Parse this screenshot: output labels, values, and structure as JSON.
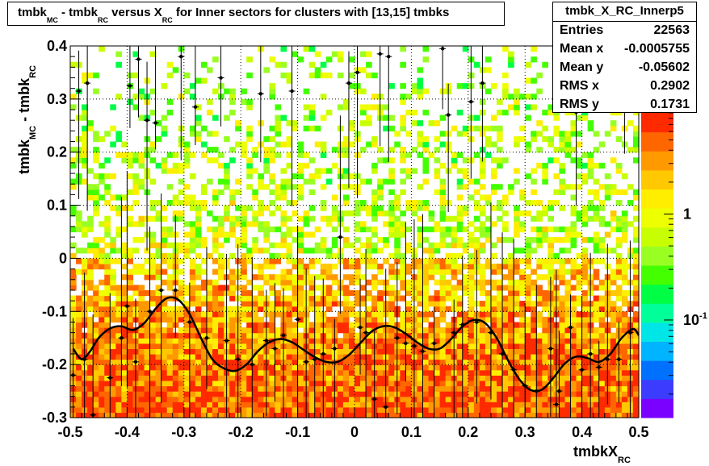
{
  "chart_data": {
    "type": "heatmap",
    "title": {
      "p1": "tmbk",
      "s1": "MC",
      "p2": " - tmbk",
      "s2": "RC",
      "p3": " versus X",
      "s3": "RC",
      "p4": " for Inner sectors for clusters with [13,15] tmbks"
    },
    "xlabel": {
      "main": "tmbkX",
      "sub": "RC"
    },
    "ylabel": {
      "main1": "tmbk",
      "sub1": "MC",
      "main2": " - tmbk",
      "sub2": "RC"
    },
    "xlim": [
      -0.5,
      0.5
    ],
    "ylim": [
      -0.3,
      0.4
    ],
    "x_ticks": [
      -0.5,
      -0.4,
      -0.3,
      -0.2,
      -0.1,
      0,
      0.1,
      0.2,
      0.3,
      0.4,
      0.5
    ],
    "x_tick_labels": [
      "-0.5",
      "-0.4",
      "-0.3",
      "-0.2",
      "-0.1",
      "0",
      "0.1",
      "0.2",
      "0.3",
      "0.4",
      "0.5"
    ],
    "y_ticks": [
      -0.3,
      -0.2,
      -0.1,
      0,
      0.1,
      0.2,
      0.3,
      0.4
    ],
    "y_tick_labels": [
      "-0.3",
      "-0.2",
      "-0.1",
      "0",
      "0.1",
      "0.2",
      "0.3",
      "0.4"
    ],
    "z_scale": "log",
    "z_tick_labels": [
      {
        "base": "1",
        "exp": ""
      },
      {
        "base": "10",
        "exp": "-1"
      }
    ],
    "z_ticks": [
      1,
      0.1
    ],
    "palette": [
      "#7a00ff",
      "#3c3cff",
      "#0070ff",
      "#00b4ff",
      "#00e6e6",
      "#00ff99",
      "#00ff44",
      "#44ff00",
      "#99ff22",
      "#c8ff00",
      "#eeff00",
      "#ffee00",
      "#ffc800",
      "#ff9900",
      "#ff6600",
      "#ff2a00"
    ],
    "profile_points": [
      {
        "x": -0.495,
        "y": -0.22
      },
      {
        "x": -0.485,
        "y": 0.315
      },
      {
        "x": -0.475,
        "y": -0.19
      },
      {
        "x": -0.47,
        "y": 0.33
      },
      {
        "x": -0.46,
        "y": -0.295
      },
      {
        "x": -0.43,
        "y": -0.225
      },
      {
        "x": -0.41,
        "y": -0.15
      },
      {
        "x": -0.4,
        "y": -0.09
      },
      {
        "x": -0.395,
        "y": 0.325
      },
      {
        "x": -0.385,
        "y": -0.195
      },
      {
        "x": -0.38,
        "y": 0.375
      },
      {
        "x": -0.365,
        "y": 0.26
      },
      {
        "x": -0.35,
        "y": 0.255
      },
      {
        "x": -0.36,
        "y": -0.1
      },
      {
        "x": -0.34,
        "y": -0.06
      },
      {
        "x": -0.315,
        "y": -0.06
      },
      {
        "x": -0.305,
        "y": 0.38
      },
      {
        "x": -0.29,
        "y": -0.12
      },
      {
        "x": -0.28,
        "y": 0.285
      },
      {
        "x": -0.26,
        "y": -0.15
      },
      {
        "x": -0.235,
        "y": 0.34
      },
      {
        "x": -0.225,
        "y": -0.155
      },
      {
        "x": -0.205,
        "y": -0.19
      },
      {
        "x": -0.18,
        "y": -0.2
      },
      {
        "x": -0.165,
        "y": 0.31
      },
      {
        "x": -0.155,
        "y": -0.155
      },
      {
        "x": -0.14,
        "y": -0.17
      },
      {
        "x": -0.125,
        "y": -0.145
      },
      {
        "x": -0.11,
        "y": 0.315
      },
      {
        "x": -0.1,
        "y": -0.115
      },
      {
        "x": -0.085,
        "y": -0.195
      },
      {
        "x": -0.07,
        "y": -0.19
      },
      {
        "x": -0.055,
        "y": -0.18
      },
      {
        "x": -0.035,
        "y": -0.17
      },
      {
        "x": -0.025,
        "y": 0.04
      },
      {
        "x": -0.01,
        "y": 0.33
      },
      {
        "x": 0.005,
        "y": 0.35
      },
      {
        "x": 0.01,
        "y": -0.13
      },
      {
        "x": 0.02,
        "y": -0.14
      },
      {
        "x": 0.035,
        "y": -0.265
      },
      {
        "x": 0.055,
        "y": -0.28
      },
      {
        "x": 0.045,
        "y": 0.385
      },
      {
        "x": 0.06,
        "y": 0.38
      },
      {
        "x": 0.075,
        "y": -0.15
      },
      {
        "x": 0.09,
        "y": -0.16
      },
      {
        "x": 0.105,
        "y": -0.165
      },
      {
        "x": 0.12,
        "y": -0.175
      },
      {
        "x": 0.14,
        "y": -0.16
      },
      {
        "x": 0.155,
        "y": 0.395
      },
      {
        "x": 0.165,
        "y": 0.27
      },
      {
        "x": 0.175,
        "y": -0.14
      },
      {
        "x": 0.19,
        "y": -0.125
      },
      {
        "x": 0.205,
        "y": 0.295
      },
      {
        "x": 0.215,
        "y": -0.12
      },
      {
        "x": 0.225,
        "y": 0.33
      },
      {
        "x": 0.24,
        "y": -0.14
      },
      {
        "x": 0.26,
        "y": -0.18
      },
      {
        "x": 0.28,
        "y": -0.21
      },
      {
        "x": 0.3,
        "y": -0.24
      },
      {
        "x": 0.32,
        "y": -0.25
      },
      {
        "x": 0.345,
        "y": -0.17
      },
      {
        "x": 0.355,
        "y": -0.275
      },
      {
        "x": 0.36,
        "y": -0.25
      },
      {
        "x": 0.38,
        "y": -0.13
      },
      {
        "x": 0.39,
        "y": 0.275
      },
      {
        "x": 0.4,
        "y": -0.21
      },
      {
        "x": 0.415,
        "y": -0.18
      },
      {
        "x": 0.43,
        "y": -0.205
      },
      {
        "x": 0.445,
        "y": -0.19
      },
      {
        "x": 0.465,
        "y": -0.19
      },
      {
        "x": 0.475,
        "y": 0.35
      },
      {
        "x": 0.485,
        "y": -0.14
      }
    ],
    "fit_curve": [
      {
        "x": -0.495,
        "y": -0.17
      },
      {
        "x": -0.48,
        "y": -0.19
      },
      {
        "x": -0.465,
        "y": -0.175
      },
      {
        "x": -0.45,
        "y": -0.15
      },
      {
        "x": -0.43,
        "y": -0.132
      },
      {
        "x": -0.41,
        "y": -0.128
      },
      {
        "x": -0.39,
        "y": -0.135
      },
      {
        "x": -0.37,
        "y": -0.122
      },
      {
        "x": -0.35,
        "y": -0.095
      },
      {
        "x": -0.33,
        "y": -0.075
      },
      {
        "x": -0.31,
        "y": -0.078
      },
      {
        "x": -0.29,
        "y": -0.105
      },
      {
        "x": -0.27,
        "y": -0.15
      },
      {
        "x": -0.25,
        "y": -0.19
      },
      {
        "x": -0.23,
        "y": -0.207
      },
      {
        "x": -0.21,
        "y": -0.212
      },
      {
        "x": -0.19,
        "y": -0.2
      },
      {
        "x": -0.17,
        "y": -0.175
      },
      {
        "x": -0.15,
        "y": -0.158
      },
      {
        "x": -0.13,
        "y": -0.152
      },
      {
        "x": -0.11,
        "y": -0.158
      },
      {
        "x": -0.09,
        "y": -0.172
      },
      {
        "x": -0.07,
        "y": -0.186
      },
      {
        "x": -0.05,
        "y": -0.195
      },
      {
        "x": -0.03,
        "y": -0.195
      },
      {
        "x": -0.01,
        "y": -0.182
      },
      {
        "x": 0.01,
        "y": -0.16
      },
      {
        "x": 0.03,
        "y": -0.138
      },
      {
        "x": 0.05,
        "y": -0.128
      },
      {
        "x": 0.07,
        "y": -0.13
      },
      {
        "x": 0.09,
        "y": -0.142
      },
      {
        "x": 0.11,
        "y": -0.158
      },
      {
        "x": 0.13,
        "y": -0.17
      },
      {
        "x": 0.15,
        "y": -0.17
      },
      {
        "x": 0.17,
        "y": -0.152
      },
      {
        "x": 0.19,
        "y": -0.128
      },
      {
        "x": 0.21,
        "y": -0.116
      },
      {
        "x": 0.23,
        "y": -0.122
      },
      {
        "x": 0.25,
        "y": -0.15
      },
      {
        "x": 0.27,
        "y": -0.192
      },
      {
        "x": 0.29,
        "y": -0.228
      },
      {
        "x": 0.31,
        "y": -0.248
      },
      {
        "x": 0.33,
        "y": -0.247
      },
      {
        "x": 0.35,
        "y": -0.225
      },
      {
        "x": 0.37,
        "y": -0.198
      },
      {
        "x": 0.39,
        "y": -0.185
      },
      {
        "x": 0.41,
        "y": -0.188
      },
      {
        "x": 0.43,
        "y": -0.195
      },
      {
        "x": 0.45,
        "y": -0.18
      },
      {
        "x": 0.47,
        "y": -0.15
      },
      {
        "x": 0.49,
        "y": -0.133
      },
      {
        "x": 0.5,
        "y": -0.145
      }
    ],
    "stats": {
      "name": "tmbk_X_RC_Innerp5",
      "rows": [
        {
          "label": "Entries",
          "value": "22563"
        },
        {
          "label": "Mean x",
          "value": "-0.0005755"
        },
        {
          "label": "Mean y",
          "value": "-0.05602"
        },
        {
          "label": "RMS x",
          "value": "0.2902"
        },
        {
          "label": "RMS y",
          "value": "0.1731"
        }
      ]
    }
  }
}
